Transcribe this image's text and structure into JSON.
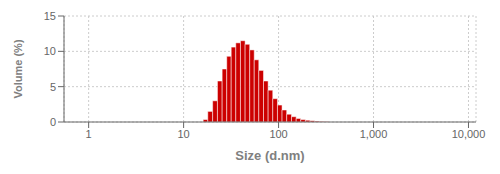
{
  "chart_data": {
    "type": "bar",
    "xlabel": "Size (d.nm)",
    "ylabel": "Volume (%)",
    "x": [
      17.0,
      19.0,
      21.5,
      24.0,
      27.0,
      30.0,
      33.5,
      37.5,
      42.0,
      47.0,
      52.5,
      58.5,
      65.5,
      73.5,
      82.0,
      92.0,
      103.0,
      115.0,
      129.0,
      145.0,
      162.0,
      181.0,
      203.0,
      227.0,
      254.0,
      285.0,
      319.0
    ],
    "values": [
      0.35,
      1.5,
      3.0,
      5.8,
      7.5,
      9.3,
      10.6,
      11.2,
      11.5,
      11.0,
      10.2,
      8.8,
      7.3,
      5.8,
      4.5,
      3.3,
      2.4,
      1.7,
      1.1,
      0.75,
      0.5,
      0.35,
      0.25,
      0.18,
      0.12,
      0.08,
      0.05
    ],
    "color": "#cc0000",
    "log": "x",
    "xlim": [
      0.55,
      12000
    ],
    "ylim": [
      0,
      15
    ],
    "xticks": [
      1,
      10,
      100,
      {
        "value": 1000,
        "label": "1,000"
      },
      {
        "value": 10000,
        "label": "10,000"
      }
    ],
    "yticks": [
      0,
      5,
      10,
      15
    ],
    "grid": true
  }
}
